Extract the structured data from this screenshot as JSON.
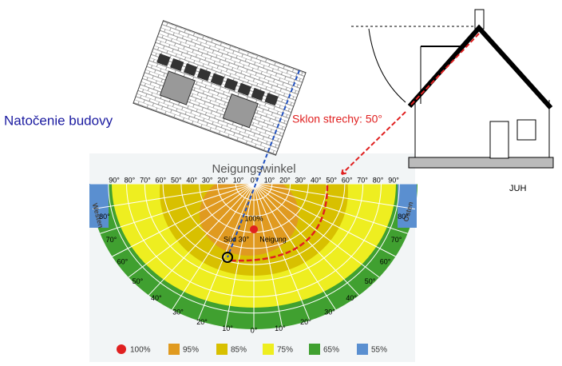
{
  "building_label": "Natočenie budovy",
  "roof_label": "Sklon strechy: 50°",
  "south_label": "JUH",
  "diagram": {
    "title": "Neigungswinkel",
    "west": "Westen",
    "east": "Osten",
    "center_value": "100%",
    "direction": "Süd 30°",
    "tilt": "Neigung",
    "top_scale": [
      "90°",
      "80°",
      "70°",
      "60°",
      "50°",
      "40°",
      "30°",
      "20°",
      "10°",
      "0°",
      "10°",
      "20°",
      "30°",
      "40°",
      "50°",
      "60°",
      "70°",
      "80°",
      "90°"
    ],
    "rim_scale": [
      "80°",
      "70°",
      "60°",
      "50°",
      "40°",
      "30°",
      "20°",
      "10°",
      "0°",
      "10°",
      "20°",
      "30°",
      "40°",
      "50°",
      "60°",
      "70°",
      "80°"
    ],
    "legend": [
      {
        "label": "100%",
        "color": "#e02020"
      },
      {
        "label": "95%",
        "color": "#e09a20"
      },
      {
        "label": "85%",
        "color": "#d8c000"
      },
      {
        "label": "75%",
        "color": "#eeee20"
      },
      {
        "label": "65%",
        "color": "#40a030"
      },
      {
        "label": "55%",
        "color": "#5a8fd0"
      }
    ]
  }
}
